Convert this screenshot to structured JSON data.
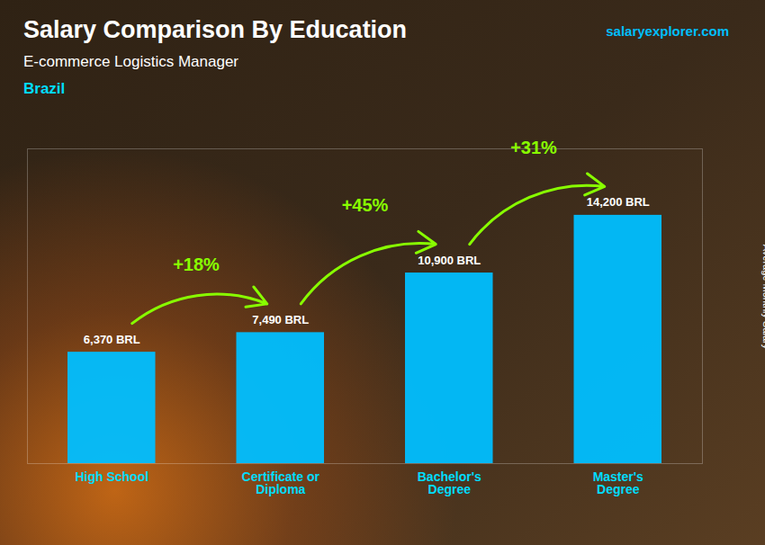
{
  "chart_data": {
    "type": "bar",
    "title": "Salary Comparison By Education",
    "subtitle": "E-commerce Logistics Manager",
    "annotations": [
      "Brazil",
      "salaryexplorer.com"
    ],
    "ylabel": "Average Monthly Salary",
    "categories": [
      "High School",
      "Certificate or\nDiploma",
      "Bachelor's\nDegree",
      "Master's\nDegree"
    ],
    "values": [
      6370,
      7490,
      10900,
      14200
    ],
    "value_labels": [
      "6,370 BRL",
      "7,490 BRL",
      "10,900 BRL",
      "14,200 BRL"
    ],
    "data_labels": true,
    "changes": [
      18,
      45,
      31
    ],
    "change_labels": [
      "+18%",
      "+45%",
      "+31%"
    ],
    "color": "#00BFFF",
    "ylim": [
      0,
      18000
    ],
    "tick_labels": "x",
    "grid": false
  }
}
